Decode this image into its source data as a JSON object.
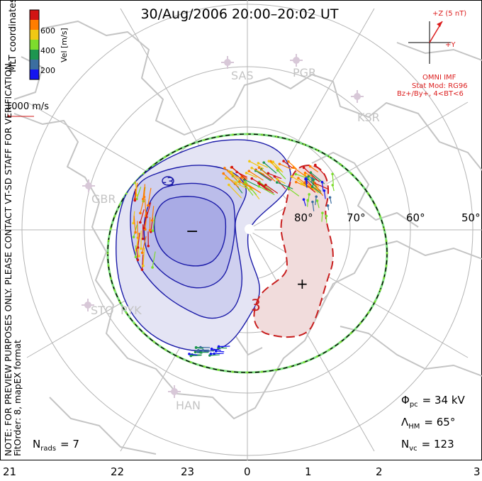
{
  "title": "30/Aug/2006 20:00–20:02 UT",
  "colorbar": {
    "unit_label": "Vel [m/s]",
    "ticks": [
      "600",
      "400",
      "200"
    ],
    "colors": [
      "#d21414",
      "#ff7d00",
      "#f0c814",
      "#7ddc2d",
      "#1e9650",
      "#3c6ea0",
      "#1414f0"
    ]
  },
  "coord_label": "MLT coordinates",
  "vector_scale_label": "1000 m/s",
  "imf": {
    "z_label": "+Z (5 nT)",
    "y_label": "+Y",
    "source": "OMNI IMF",
    "model_line1": "Stat Mod: RG96",
    "model_line2": "Bz+/By+, 4<BT<6"
  },
  "stations": [
    "SAS",
    "PGR",
    "KSR",
    "GBR",
    "STO",
    "PYK",
    "HAN"
  ],
  "latitude_labels": [
    "80°",
    "70°",
    "60°",
    "50°"
  ],
  "mlt_labels": [
    "21",
    "22",
    "23",
    "0",
    "1",
    "2",
    "3"
  ],
  "contour_labels": [
    "-3",
    "3"
  ],
  "cell_signs": [
    "−",
    "+"
  ],
  "stats": {
    "phi_symbol": "Φ",
    "phi_sub": "pc",
    "phi_value": "= 34 kV",
    "lambda_symbol": "Λ",
    "lambda_sub": "HM",
    "lambda_value": "= 65°",
    "nvc_symbol": "N",
    "nvc_sub": "vc",
    "nvc_value": "= 123",
    "nrads_symbol": "N",
    "nrads_sub": "rads",
    "nrads_value": "= 7"
  },
  "note_line1": "NOTE: FOR PREVIEW PURPOSES ONLY. PLEASE CONTACT VT-SD STAFF FOR VERIFICATION.",
  "note_line2": "FitOrder: 8, mapEX format",
  "colors": {
    "neg_contour": "#1a1aa8",
    "pos_contour": "#c81e1e",
    "map_outline": "#c4c4c4",
    "grid": "#b4b4b4",
    "imf": "#dc1e1e",
    "hmb_green": "#7ee07e"
  }
}
